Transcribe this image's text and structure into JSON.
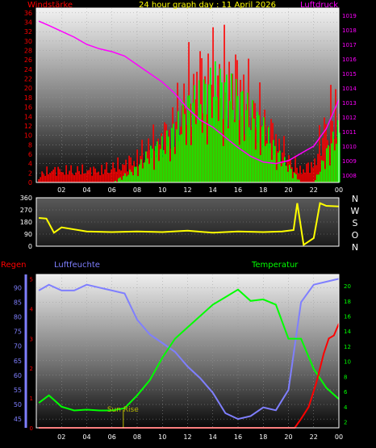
{
  "title": "24 hour graph day : 11 April 2026",
  "colors": {
    "wind_speed": "#ff0000",
    "wind_gust": "#00ff00",
    "pressure": "#ff00ff",
    "wind_dir": "#ffff00",
    "humidity": "#7f7fff",
    "temperature": "#00ff00",
    "rain": "#ff0000",
    "sunrise": "#b8b800",
    "frame": "#ffffff"
  },
  "chart_data": [
    {
      "type": "bar",
      "name": "wind-pressure",
      "left_label": "Windstärke",
      "right_label": "Luftdruck",
      "x_ticks": [
        "02",
        "04",
        "06",
        "08",
        "10",
        "12",
        "14",
        "16",
        "18",
        "20",
        "22",
        "00"
      ],
      "y_left_ticks": [
        "0",
        "2",
        "4",
        "6",
        "8",
        "10",
        "12",
        "14",
        "16",
        "18",
        "20",
        "22",
        "24",
        "26",
        "28",
        "30",
        "32",
        "34",
        "36"
      ],
      "y_right_ticks": [
        "1008",
        "1009",
        "1010",
        "1011",
        "1012",
        "1013",
        "1014",
        "1015",
        "1016",
        "1017",
        "1018",
        "1019"
      ],
      "ylim_left": [
        0,
        37
      ],
      "ylim_right": [
        1007.5,
        1019.5
      ],
      "x_hours": [
        0.2,
        1,
        2,
        3,
        4,
        5,
        6,
        7,
        8,
        9,
        10,
        11,
        12,
        13,
        14,
        15,
        16,
        17,
        18,
        19,
        20,
        21,
        22,
        23,
        24
      ],
      "wind_max": [
        2,
        4,
        4,
        4,
        4,
        4,
        5,
        6,
        8,
        12,
        14,
        20,
        30,
        33,
        34,
        34,
        32,
        26,
        20,
        14,
        8,
        4,
        6,
        20,
        24
      ],
      "gust_max": [
        0,
        0,
        0,
        0,
        0,
        0,
        0,
        2,
        4,
        8,
        10,
        14,
        20,
        22,
        26,
        24,
        22,
        18,
        14,
        8,
        4,
        0,
        0,
        8,
        14
      ],
      "pressure": [
        1018.6,
        1018.3,
        1017.9,
        1017.5,
        1017.0,
        1016.7,
        1016.5,
        1016.2,
        1015.6,
        1015.0,
        1014.4,
        1013.6,
        1012.6,
        1011.8,
        1011.3,
        1010.6,
        1009.9,
        1009.3,
        1008.9,
        1008.8,
        1009.0,
        1009.5,
        1010.0,
        1011.2,
        1013.2
      ]
    },
    {
      "type": "line",
      "name": "wind-direction",
      "y_ticks": [
        "0",
        "90",
        "180",
        "270",
        "360"
      ],
      "ylim": [
        0,
        360
      ],
      "direction_labels": [
        "N",
        "W",
        "S",
        "O",
        "N"
      ],
      "x_hours": [
        0.2,
        0.8,
        1.4,
        2,
        4,
        6,
        8,
        10,
        12,
        14,
        16,
        18,
        19.5,
        20.4,
        20.7,
        21.2,
        22.0,
        22.5,
        23,
        24
      ],
      "values": [
        210,
        205,
        100,
        140,
        110,
        105,
        110,
        105,
        115,
        100,
        110,
        105,
        110,
        120,
        320,
        10,
        60,
        320,
        300,
        295
      ]
    },
    {
      "type": "line",
      "name": "rain-humidity-temperature",
      "rain_label": "Regen",
      "humidity_label": "Luftfeuchte",
      "temperature_label": "Temperatur",
      "sunrise_label": "Sun Rise",
      "x_ticks": [
        "02",
        "04",
        "06",
        "08",
        "10",
        "12",
        "14",
        "16",
        "18",
        "20",
        "22",
        "00"
      ],
      "humidity_ticks": [
        "45",
        "50",
        "55",
        "60",
        "65",
        "70",
        "75",
        "80",
        "85",
        "90"
      ],
      "temperature_ticks": [
        "2",
        "4",
        "6",
        "8",
        "10",
        "12",
        "14",
        "16",
        "18",
        "20"
      ],
      "rain_ticks": [
        "0",
        "1",
        "2",
        "3",
        "4",
        "5"
      ],
      "humidity_lim": [
        42,
        94.5
      ],
      "temperature_lim": [
        1.2,
        21.5
      ],
      "rain_lim": [
        0,
        5.15
      ],
      "x_hours": [
        0.2,
        1,
        2,
        3,
        4,
        5,
        6,
        7,
        8,
        9,
        10,
        11,
        12,
        13,
        14,
        15,
        16,
        17,
        18,
        19,
        20,
        21,
        22,
        23,
        24
      ],
      "humidity": [
        89,
        91,
        89,
        89,
        91,
        90,
        89,
        88,
        79,
        74,
        71,
        68,
        63,
        59,
        54,
        47,
        45,
        46,
        49,
        48,
        55,
        85,
        91,
        92,
        93
      ],
      "temperature": [
        4.5,
        5.5,
        4.0,
        3.5,
        3.6,
        3.5,
        3.5,
        3.8,
        5.5,
        7.5,
        10.5,
        13.0,
        14.5,
        16.0,
        17.5,
        18.5,
        19.5,
        18.0,
        18.2,
        17.5,
        13.0,
        13.0,
        9.0,
        6.5,
        5.0
      ],
      "rain_x": [
        0.2,
        20.5,
        21.0,
        21.6,
        22.2,
        22.8,
        23.2,
        23.6,
        24.0
      ],
      "rain": [
        0,
        0,
        0.3,
        0.7,
        1.5,
        2.5,
        3.0,
        3.1,
        3.5
      ],
      "sunrise_hour": 6.9
    }
  ]
}
